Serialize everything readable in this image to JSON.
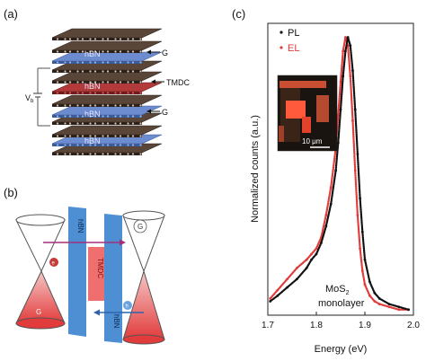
{
  "panels": {
    "a": "(a)",
    "b": "(b)",
    "c": "(c)"
  },
  "panel_a": {
    "layer_labels": [
      "hBN",
      "hBN",
      "hBN",
      "hBN"
    ],
    "side_labels": {
      "g_top": "G",
      "tmdc": "TMDC",
      "g_bottom": "G"
    },
    "bias_label": "V",
    "bias_sub": "b"
  },
  "panel_b": {
    "hbn_left": "hBN",
    "hbn_right": "hBN",
    "tmdc": "TMDC",
    "g_left": "G",
    "g_right": "G",
    "electron": "e",
    "hole": "h"
  },
  "chart_data": {
    "type": "line",
    "xlabel": "Energy (eV)",
    "ylabel": "Normalized counts (a.u.)",
    "xlim": [
      1.7,
      2.0
    ],
    "ylim": [
      0,
      1.05
    ],
    "xticks": [
      "1.7",
      "1.8",
      "1.9",
      "2.0"
    ],
    "legend": [
      "PL",
      "EL"
    ],
    "legend_placement": "top-left",
    "annotation": "MoS",
    "annotation_sub": "2",
    "annotation_line2": "monolayer",
    "inset_scale": "10 μm",
    "colors": {
      "PL": "#111111",
      "EL": "#e23b3b"
    },
    "series": [
      {
        "name": "PL",
        "x": [
          1.705,
          1.72,
          1.74,
          1.76,
          1.78,
          1.79,
          1.8,
          1.81,
          1.82,
          1.83,
          1.84,
          1.845,
          1.85,
          1.855,
          1.86,
          1.865,
          1.87,
          1.875,
          1.88,
          1.885,
          1.89,
          1.895,
          1.9,
          1.91,
          1.92,
          1.93,
          1.95,
          1.97,
          1.99
        ],
        "y": [
          0.05,
          0.07,
          0.1,
          0.13,
          0.17,
          0.2,
          0.22,
          0.26,
          0.32,
          0.4,
          0.52,
          0.62,
          0.74,
          0.86,
          0.95,
          1.0,
          0.97,
          0.88,
          0.74,
          0.58,
          0.42,
          0.3,
          0.2,
          0.12,
          0.08,
          0.06,
          0.04,
          0.03,
          0.02
        ]
      },
      {
        "name": "EL",
        "x": [
          1.705,
          1.72,
          1.74,
          1.76,
          1.78,
          1.79,
          1.8,
          1.81,
          1.82,
          1.83,
          1.84,
          1.845,
          1.85,
          1.855,
          1.86,
          1.865,
          1.87,
          1.875,
          1.88,
          1.885,
          1.89,
          1.895,
          1.9,
          1.91,
          1.92,
          1.93,
          1.95,
          1.97,
          1.99
        ],
        "y": [
          0.06,
          0.09,
          0.13,
          0.17,
          0.2,
          0.22,
          0.24,
          0.28,
          0.36,
          0.46,
          0.6,
          0.72,
          0.84,
          0.95,
          1.0,
          0.97,
          0.86,
          0.7,
          0.52,
          0.36,
          0.24,
          0.16,
          0.11,
          0.07,
          0.05,
          0.04,
          0.03,
          0.02,
          0.02
        ]
      }
    ]
  }
}
